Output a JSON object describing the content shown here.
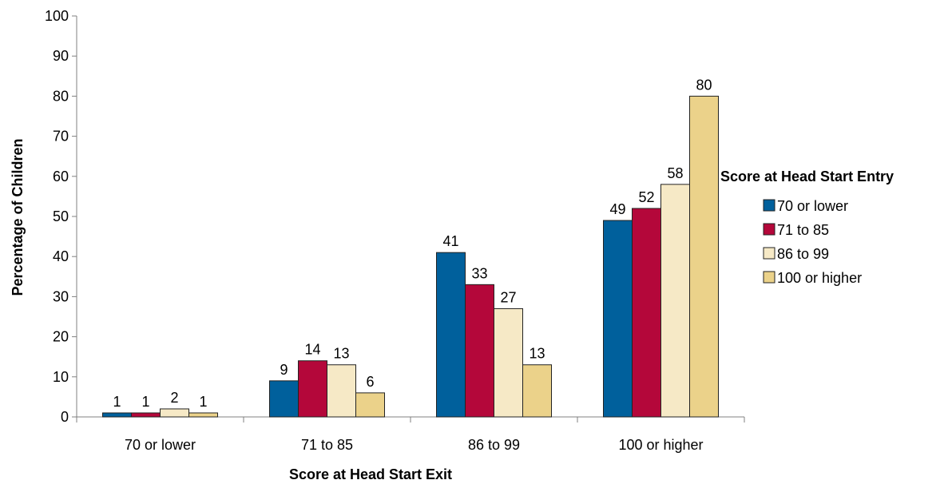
{
  "chart_data": {
    "type": "bar",
    "categories": [
      "70 or lower",
      "71 to 85",
      "86 to 99",
      "100 or higher"
    ],
    "series": [
      {
        "name": "70 or lower",
        "values": [
          1,
          9,
          41,
          49
        ],
        "color": "#00609c"
      },
      {
        "name": "71 to 85",
        "values": [
          1,
          14,
          33,
          52
        ],
        "color": "#b4073a"
      },
      {
        "name": "86 to 99",
        "values": [
          2,
          13,
          27,
          58
        ],
        "color": "#f6e9c6"
      },
      {
        "name": "100 or higher",
        "values": [
          1,
          6,
          13,
          80
        ],
        "color": "#ebd28a"
      }
    ],
    "xlabel": "Score at Head Start Exit",
    "ylabel": "Percentage of Children",
    "ylim": [
      0,
      100
    ],
    "yticks": [
      0,
      10,
      20,
      30,
      40,
      50,
      60,
      70,
      80,
      90,
      100
    ],
    "legend_title": "Score at Head Start Entry",
    "legend_position": "right",
    "grid": false
  }
}
